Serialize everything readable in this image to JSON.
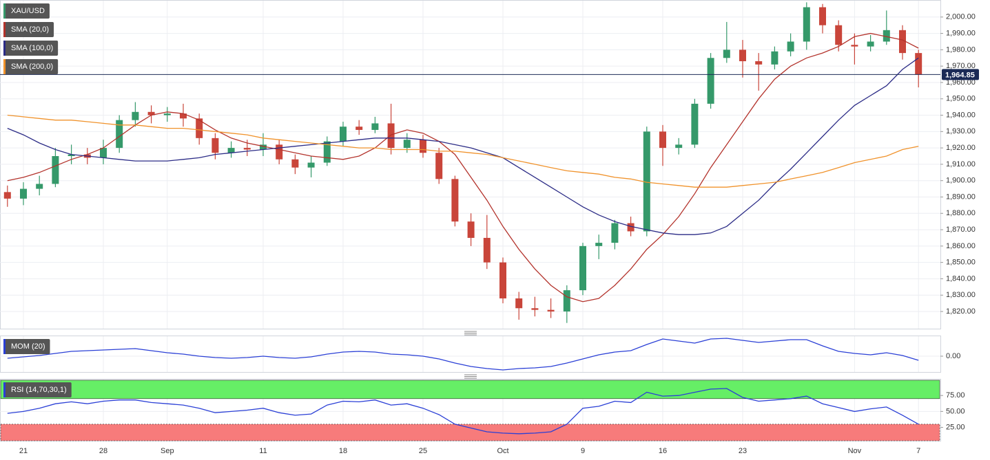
{
  "chart_data": [
    {
      "type": "candlestick",
      "title": "XAU/USD",
      "categories": [
        null,
        "21",
        null,
        null,
        null,
        null,
        "28",
        null,
        null,
        null,
        "Sep",
        null,
        null,
        null,
        null,
        null,
        "11",
        null,
        null,
        null,
        null,
        "18",
        null,
        null,
        null,
        null,
        "25",
        null,
        null,
        null,
        null,
        "Oct",
        null,
        null,
        null,
        null,
        "9",
        null,
        null,
        null,
        null,
        "16",
        null,
        null,
        null,
        null,
        "23",
        null,
        null,
        null,
        null,
        null,
        null,
        "Nov",
        null,
        null,
        null,
        "7"
      ],
      "open": [
        1893,
        1889,
        1895,
        1898,
        1915,
        1916,
        1914,
        1920,
        1937,
        1942,
        1940,
        1941,
        1938,
        1926,
        1917,
        1920,
        1919,
        1922,
        1913,
        1908,
        1911,
        1924,
        1933,
        1931,
        1935,
        1920,
        1925,
        1917,
        1901,
        1875,
        1865,
        1850,
        1828,
        1822,
        1821,
        1820,
        1833,
        1860,
        1862,
        1874,
        1869,
        1930,
        1920,
        1922,
        1947,
        1975,
        1980,
        1973,
        1971,
        1979,
        1985,
        2006,
        1995,
        1983,
        1982,
        1985,
        1992,
        1978
      ],
      "high": [
        1897,
        1899,
        1903,
        1920,
        1922,
        1920,
        1925,
        1940,
        1948,
        1946,
        1945,
        1947,
        1941,
        1929,
        1924,
        1925,
        1929,
        1925,
        1916,
        1915,
        1927,
        1936,
        1937,
        1939,
        1947,
        1929,
        1928,
        1920,
        1903,
        1880,
        1879,
        1853,
        1832,
        1829,
        1828,
        1836,
        1862,
        1867,
        1876,
        1878,
        1933,
        1934,
        1926,
        1950,
        1978,
        1997,
        1986,
        1978,
        1982,
        1990,
        2009,
        2008,
        1998,
        1990,
        1989,
        2004,
        1995,
        1980
      ],
      "low": [
        1884,
        1885,
        1891,
        1896,
        1910,
        1910,
        1910,
        1917,
        1933,
        1935,
        1936,
        1933,
        1922,
        1913,
        1914,
        1915,
        1915,
        1910,
        1904,
        1902,
        1909,
        1921,
        1928,
        1929,
        1916,
        1917,
        1914,
        1898,
        1872,
        1860,
        1846,
        1825,
        1815,
        1817,
        1816,
        1813,
        1830,
        1852,
        1858,
        1866,
        1866,
        1909,
        1916,
        1920,
        1944,
        1972,
        1963,
        1955,
        1968,
        1976,
        1980,
        1990,
        1979,
        1971,
        1979,
        1983,
        1974,
        1957
      ],
      "close": [
        1889,
        1895,
        1898,
        1915,
        1916,
        1914,
        1920,
        1937,
        1942,
        1940,
        1941,
        1938,
        1926,
        1917,
        1920,
        1919,
        1922,
        1913,
        1908,
        1911,
        1924,
        1933,
        1931,
        1935,
        1920,
        1925,
        1917,
        1901,
        1875,
        1865,
        1850,
        1828,
        1822,
        1821,
        1820,
        1833,
        1860,
        1862,
        1874,
        1869,
        1930,
        1920,
        1922,
        1947,
        1975,
        1980,
        1973,
        1971,
        1979,
        1985,
        2006,
        1995,
        1983,
        1982,
        1985,
        1992,
        1978,
        1965
      ],
      "up_color": "#35996a",
      "down_color": "#c9453a",
      "series": [
        {
          "name": "SMA (20,0)",
          "color": "#b3322b",
          "values": [
            1900,
            1902,
            1905,
            1909,
            1913,
            1916,
            1920,
            1927,
            1934,
            1940,
            1942,
            1941,
            1937,
            1931,
            1926,
            1923,
            1921,
            1919,
            1917,
            1915,
            1914,
            1913,
            1915,
            1920,
            1928,
            1931,
            1929,
            1924,
            1916,
            1902,
            1888,
            1872,
            1858,
            1846,
            1836,
            1829,
            1826,
            1828,
            1836,
            1846,
            1858,
            1867,
            1878,
            1892,
            1908,
            1922,
            1936,
            1950,
            1962,
            1970,
            1975,
            1978,
            1982,
            1988,
            1990,
            1988,
            1986,
            1981
          ]
        },
        {
          "name": "SMA (100,0)",
          "color": "#2b2b86",
          "values": [
            1932,
            1928,
            1923,
            1919,
            1916,
            1915,
            1914,
            1913,
            1912,
            1912,
            1912,
            1913,
            1914,
            1916,
            1917,
            1918,
            1919,
            1920,
            1921,
            1922,
            1923,
            1924,
            1925,
            1926,
            1926,
            1926,
            1925,
            1924,
            1922,
            1920,
            1917,
            1914,
            1908,
            1902,
            1896,
            1890,
            1884,
            1879,
            1875,
            1872,
            1870,
            1868,
            1867,
            1867,
            1868,
            1872,
            1880,
            1888,
            1898,
            1907,
            1917,
            1927,
            1937,
            1946,
            1952,
            1958,
            1968,
            1975
          ]
        },
        {
          "name": "SMA (200,0)",
          "color": "#f0922b",
          "values": [
            1940,
            1939,
            1938,
            1937,
            1937,
            1936,
            1935,
            1934,
            1934,
            1933,
            1932,
            1932,
            1931,
            1930,
            1929,
            1928,
            1926,
            1925,
            1924,
            1923,
            1922,
            1921,
            1920,
            1920,
            1919,
            1919,
            1919,
            1918,
            1918,
            1917,
            1916,
            1914,
            1912,
            1910,
            1908,
            1906,
            1905,
            1904,
            1902,
            1901,
            1899,
            1898,
            1897,
            1896,
            1896,
            1896,
            1897,
            1898,
            1899,
            1901,
            1903,
            1905,
            1908,
            1911,
            1913,
            1915,
            1919,
            1921
          ]
        }
      ],
      "last_price": {
        "value": 1964.85,
        "label": "1,964.85"
      },
      "last_price_color": "#1b2a55",
      "ylim": [
        1809.5,
        2010
      ],
      "yticks": [
        {
          "value": 1820,
          "label": "1,820.00"
        },
        {
          "value": 1830,
          "label": "1,830.00"
        },
        {
          "value": 1840,
          "label": "1,840.00"
        },
        {
          "value": 1850,
          "label": "1,850.00"
        },
        {
          "value": 1860,
          "label": "1,860.00"
        },
        {
          "value": 1870,
          "label": "1,870.00"
        },
        {
          "value": 1880,
          "label": "1,880.00"
        },
        {
          "value": 1890,
          "label": "1,890.00"
        },
        {
          "value": 1900,
          "label": "1,900.00"
        },
        {
          "value": 1910,
          "label": "1,910.00"
        },
        {
          "value": 1920,
          "label": "1,920.00"
        },
        {
          "value": 1930,
          "label": "1,930.00"
        },
        {
          "value": 1940,
          "label": "1,940.00"
        },
        {
          "value": 1950,
          "label": "1,950.00"
        },
        {
          "value": 1960,
          "label": "1,960.00"
        },
        {
          "value": 1970,
          "label": "1,970.00"
        },
        {
          "value": 1980,
          "label": "1,980.00"
        },
        {
          "value": 1990,
          "label": "1,990.00"
        },
        {
          "value": 2000,
          "label": "2,000.00"
        }
      ],
      "grid": true
    },
    {
      "type": "line",
      "series": [
        {
          "name": "MOM (20)",
          "color": "#2a3fd6",
          "values": [
            -6,
            -2,
            2,
            8,
            14,
            16,
            18,
            20,
            22,
            16,
            10,
            6,
            0,
            -4,
            -6,
            -4,
            0,
            -4,
            -6,
            -2,
            6,
            12,
            14,
            12,
            6,
            4,
            0,
            -8,
            -20,
            -30,
            -36,
            -40,
            -36,
            -34,
            -30,
            -20,
            -8,
            4,
            12,
            16,
            34,
            50,
            44,
            38,
            50,
            52,
            46,
            40,
            44,
            48,
            48,
            30,
            14,
            8,
            4,
            10,
            2,
            -12
          ]
        }
      ],
      "ylim": [
        -46,
        58
      ],
      "yticks": [
        {
          "value": 0,
          "label": "0.00"
        }
      ],
      "grid": true
    },
    {
      "type": "line",
      "series": [
        {
          "name": "RSI (14,70,30,1)",
          "color": "#2a3fd6",
          "values": [
            47,
            50,
            55,
            62,
            65,
            62,
            66,
            68,
            68,
            64,
            62,
            60,
            55,
            48,
            50,
            52,
            55,
            48,
            44,
            46,
            60,
            66,
            65,
            68,
            60,
            62,
            55,
            45,
            30,
            24,
            18,
            16,
            15,
            16,
            18,
            30,
            55,
            58,
            66,
            64,
            80,
            74,
            75,
            80,
            85,
            86,
            72,
            66,
            68,
            70,
            74,
            62,
            56,
            50,
            54,
            57,
            44,
            30
          ]
        }
      ],
      "ylim": [
        4,
        100
      ],
      "yticks": [
        {
          "value": 25,
          "label": "25.00"
        },
        {
          "value": 50,
          "label": "50.00"
        },
        {
          "value": 75,
          "label": "75.00"
        }
      ],
      "overbought": 70,
      "oversold": 30,
      "overbought_color": "#66ee66",
      "oversold_color": "#f77b7b",
      "grid": true
    }
  ]
}
